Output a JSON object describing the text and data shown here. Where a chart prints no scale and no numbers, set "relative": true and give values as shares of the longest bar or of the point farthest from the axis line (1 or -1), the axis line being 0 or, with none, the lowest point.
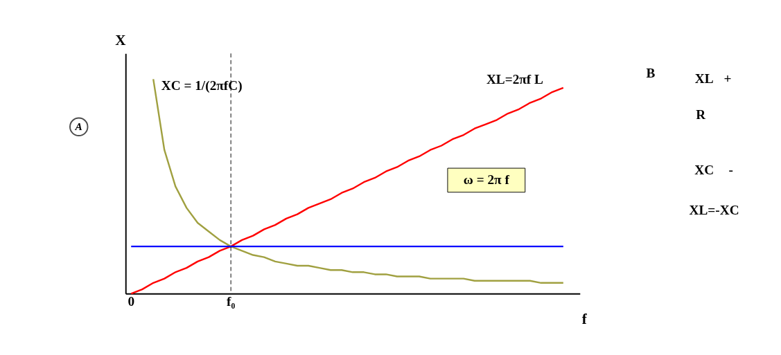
{
  "chart_data": [
    {
      "type": "line",
      "relative": true,
      "xlabel": "f",
      "ylabel": "X",
      "categories": [
        "0",
        null,
        null,
        null,
        null,
        null,
        null,
        null,
        null,
        "f₀",
        null,
        null,
        null,
        null,
        null,
        null,
        null,
        null,
        null,
        null,
        null,
        null,
        null,
        null,
        null,
        null,
        null,
        null,
        null,
        null,
        null,
        null,
        null,
        null,
        null,
        null,
        null,
        null,
        null,
        null,
        null
      ],
      "series": [
        {
          "name": "XC = 1/(2πfC)",
          "color": "#a0a040",
          "values": [
            null,
            null,
            1.0,
            0.67,
            0.5,
            0.4,
            0.33,
            0.29,
            0.25,
            0.22,
            0.2,
            0.18,
            0.17,
            0.15,
            0.14,
            0.13,
            0.13,
            0.12,
            0.11,
            0.11,
            0.1,
            0.1,
            0.09,
            0.09,
            0.08,
            0.08,
            0.08,
            0.07,
            0.07,
            0.07,
            0.07,
            0.06,
            0.06,
            0.06,
            0.06,
            0.06,
            0.06,
            0.05,
            0.05,
            0.05,
            null
          ]
        },
        {
          "name": "XL=2πf L",
          "color": "#ff0000",
          "values": [
            0,
            0.02,
            0.05,
            0.07,
            0.1,
            0.12,
            0.15,
            0.17,
            0.2,
            0.22,
            0.25,
            0.27,
            0.3,
            0.32,
            0.35,
            0.37,
            0.4,
            0.42,
            0.44,
            0.47,
            0.49,
            0.52,
            0.54,
            0.57,
            0.59,
            0.62,
            0.64,
            0.67,
            0.69,
            0.72,
            0.74,
            0.77,
            0.79,
            0.81,
            0.84,
            0.86,
            0.89,
            0.91,
            0.94,
            0.96,
            null
          ]
        },
        {
          "color": "#0000ff",
          "values": [
            0.22,
            0.22,
            0.22,
            0.22,
            0.22,
            0.22,
            0.22,
            0.22,
            0.22,
            0.22,
            0.22,
            0.22,
            0.22,
            0.22,
            0.22,
            0.22,
            0.22,
            0.22,
            0.22,
            0.22,
            0.22,
            0.22,
            0.22,
            0.22,
            0.22,
            0.22,
            0.22,
            0.22,
            0.22,
            0.22,
            0.22,
            0.22,
            0.22,
            0.22,
            0.22,
            0.22,
            0.22,
            0.22,
            0.22,
            0.22,
            null
          ]
        }
      ],
      "ref_lines": [
        {
          "axis": "x",
          "value": "f₀",
          "line_style": "dashed",
          "color": "#000000"
        }
      ],
      "annotations": [
        "A",
        "ω = 2π f"
      ],
      "grid": false,
      "marker": "none",
      "line_style": "solid"
    },
    {
      "type": "other",
      "annotations": [
        "B",
        "XL",
        "+",
        "R",
        "XC",
        "-",
        "XL=-XC"
      ]
    }
  ]
}
